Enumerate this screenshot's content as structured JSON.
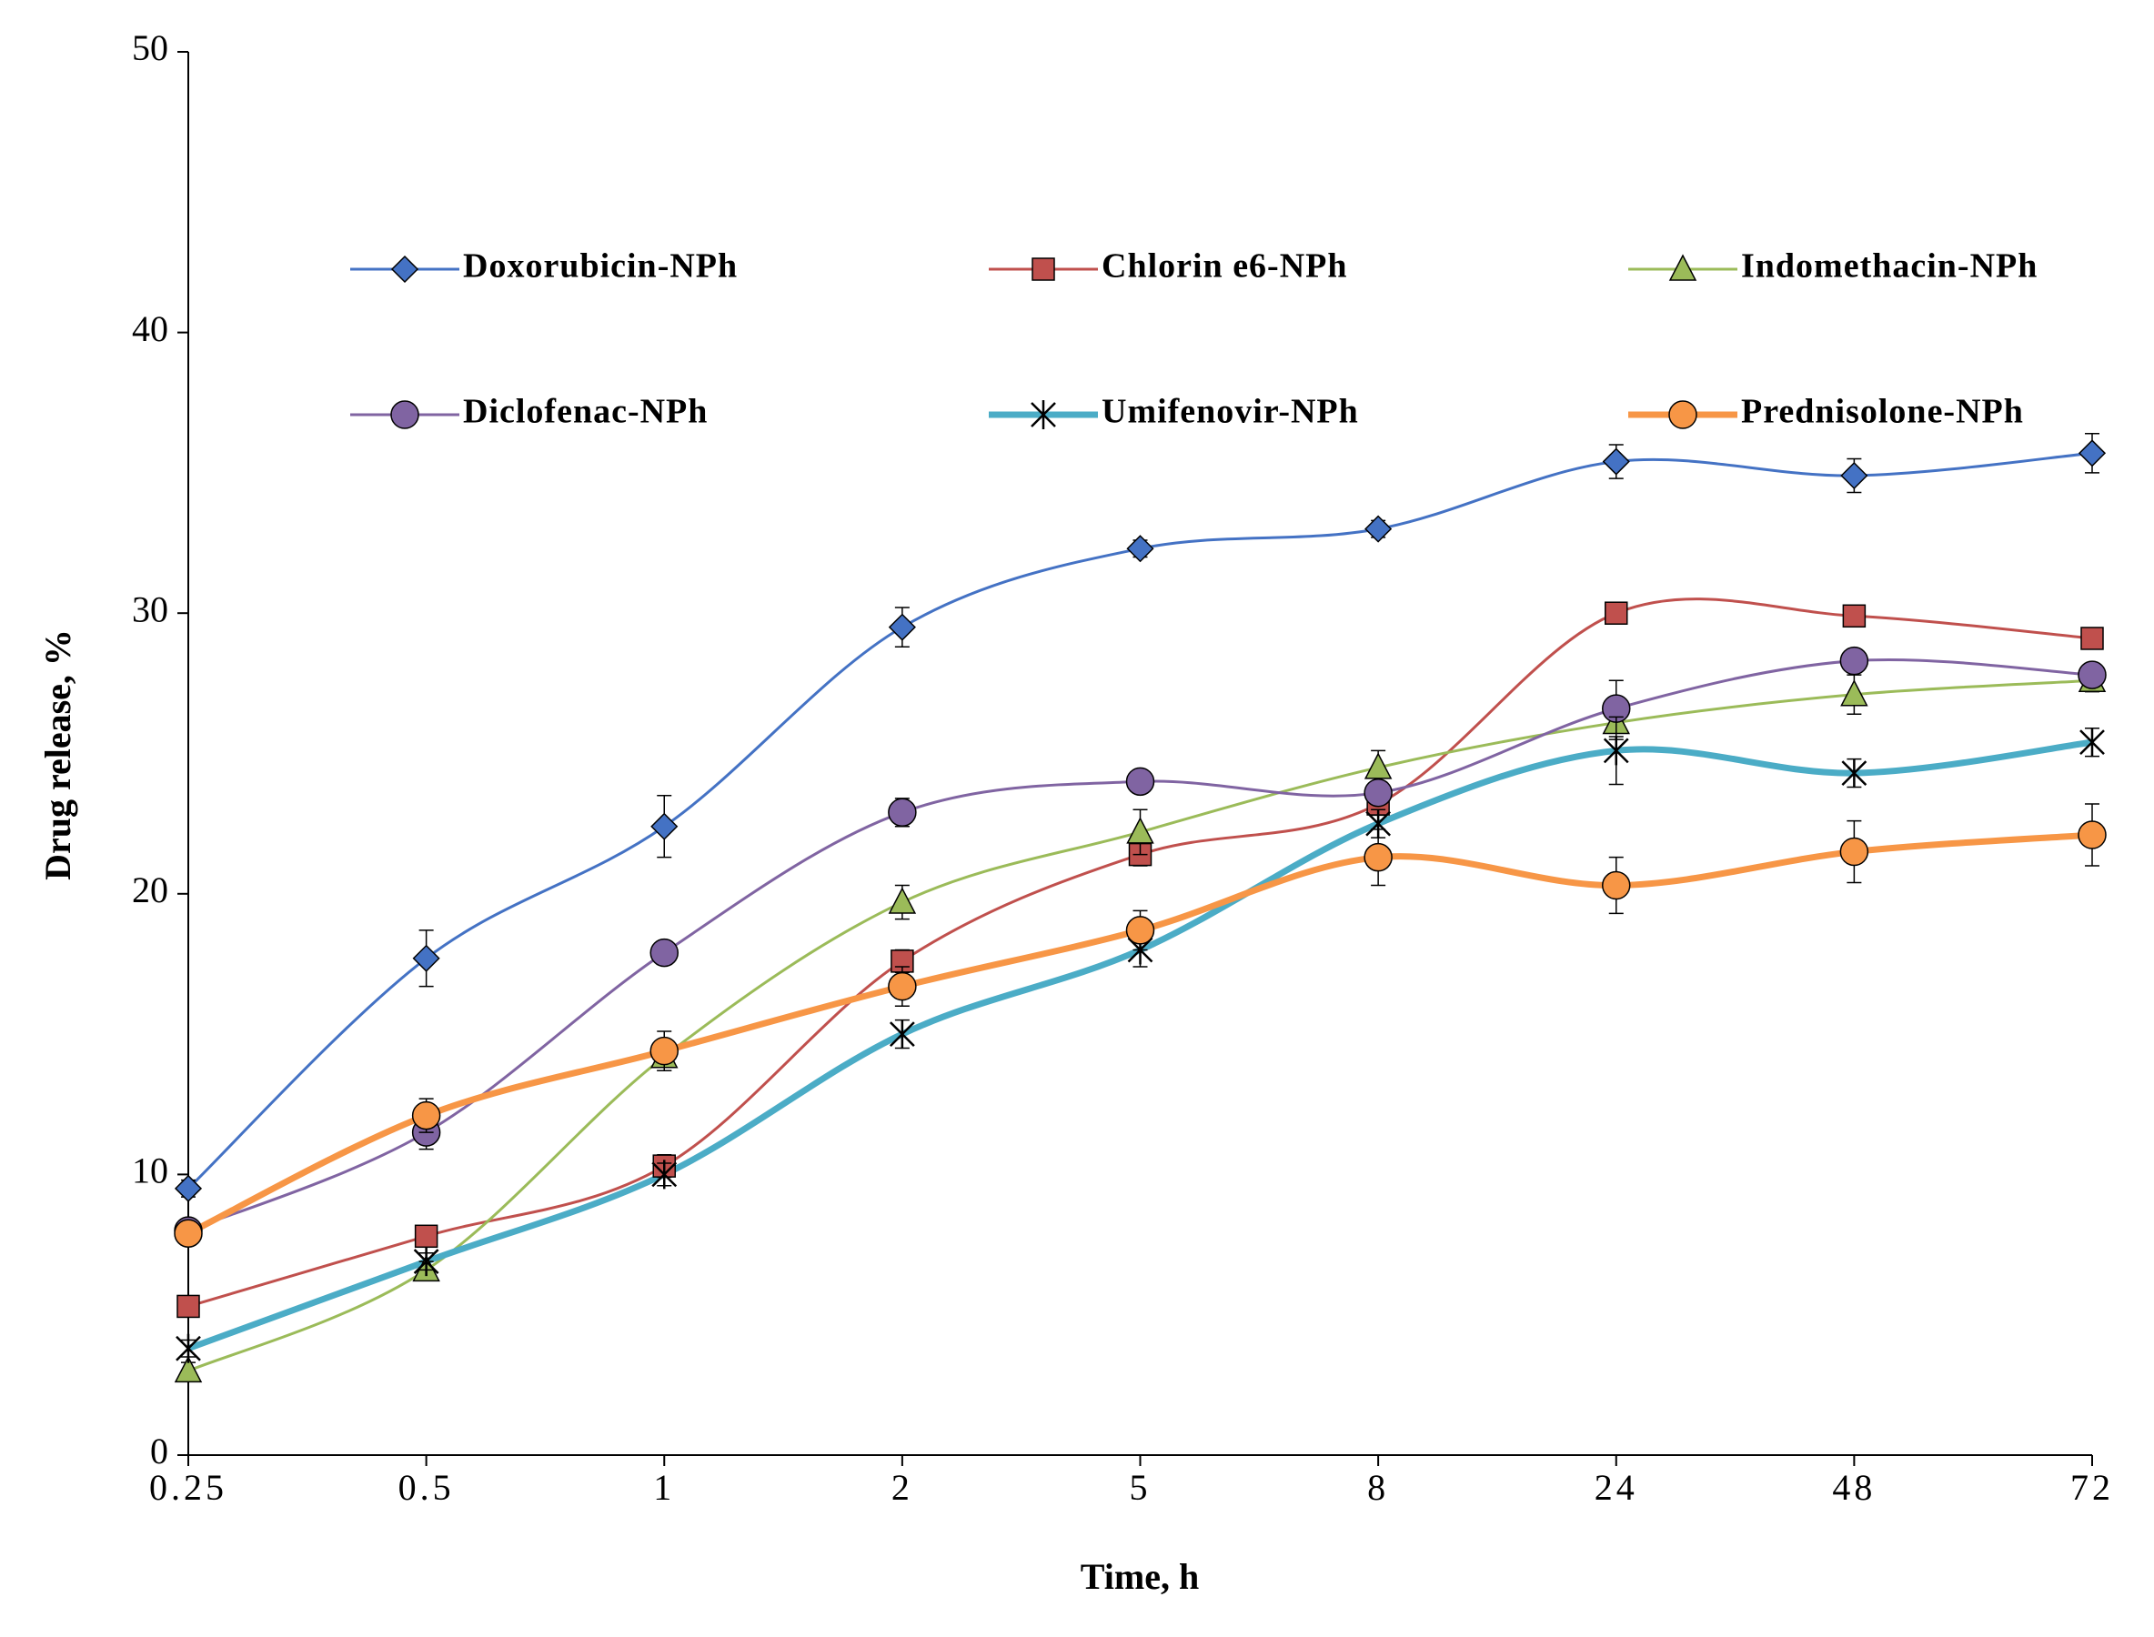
{
  "chart_data": {
    "type": "line",
    "x_label": "Time, h",
    "y_label": "Drug release, %",
    "categories": [
      "0.25",
      "0.5",
      "1",
      "2",
      "5",
      "8",
      "24",
      "48",
      "72"
    ],
    "ylim": [
      0,
      50
    ],
    "yticks": [
      0,
      10,
      20,
      30,
      40,
      50
    ],
    "grid": false,
    "series": [
      {
        "name": "Doxorubicin-NPh",
        "color": "#4472c4",
        "marker": "diamond",
        "values": [
          9.5,
          17.7,
          22.4,
          29.5,
          32.3,
          33.0,
          35.4,
          34.9,
          35.7
        ],
        "errors": [
          0.3,
          1.0,
          1.1,
          0.7,
          0.3,
          0.3,
          0.6,
          0.6,
          0.7
        ]
      },
      {
        "name": "Chlorin e6-NPh",
        "color": "#c0504d",
        "marker": "square",
        "values": [
          5.3,
          7.8,
          10.3,
          17.6,
          21.4,
          23.2,
          30.0,
          29.9,
          29.1
        ],
        "errors": [
          0.3,
          0.3,
          0.4,
          0.4,
          0.4,
          0.4,
          0.3,
          0.3,
          0.3
        ]
      },
      {
        "name": "Indomethacin-NPh",
        "color": "#9bbb59",
        "marker": "triangle",
        "values": [
          3.0,
          6.6,
          14.2,
          19.7,
          22.2,
          24.5,
          26.1,
          27.1,
          27.6
        ],
        "errors": [
          0.3,
          0.3,
          0.5,
          0.6,
          0.8,
          0.6,
          0.6,
          0.7,
          0.4
        ]
      },
      {
        "name": "Diclofenac-NPh",
        "color": "#8064a2",
        "marker": "circle",
        "values": [
          8.0,
          11.5,
          17.9,
          22.9,
          24.0,
          23.6,
          26.6,
          28.3,
          27.8
        ],
        "errors": [
          0.3,
          0.6,
          0.4,
          0.5,
          0.4,
          0.4,
          1.0,
          0.4,
          0.4
        ]
      },
      {
        "name": "Umifenovir-NPh",
        "color": "#4bacc6",
        "marker": "star",
        "values": [
          3.8,
          6.9,
          10.0,
          15.0,
          18.0,
          22.5,
          25.1,
          24.3,
          25.4
        ],
        "errors": [
          0.3,
          0.3,
          0.4,
          0.5,
          0.6,
          0.5,
          1.2,
          0.5,
          0.5
        ]
      },
      {
        "name": "Prednisolone-NPh",
        "color": "#f79646",
        "marker": "circle",
        "values": [
          7.9,
          12.1,
          14.4,
          16.7,
          18.7,
          21.3,
          20.3,
          21.5,
          22.1
        ],
        "errors": [
          0.3,
          0.6,
          0.7,
          0.7,
          0.7,
          1.0,
          1.0,
          1.1,
          1.1
        ]
      }
    ]
  }
}
